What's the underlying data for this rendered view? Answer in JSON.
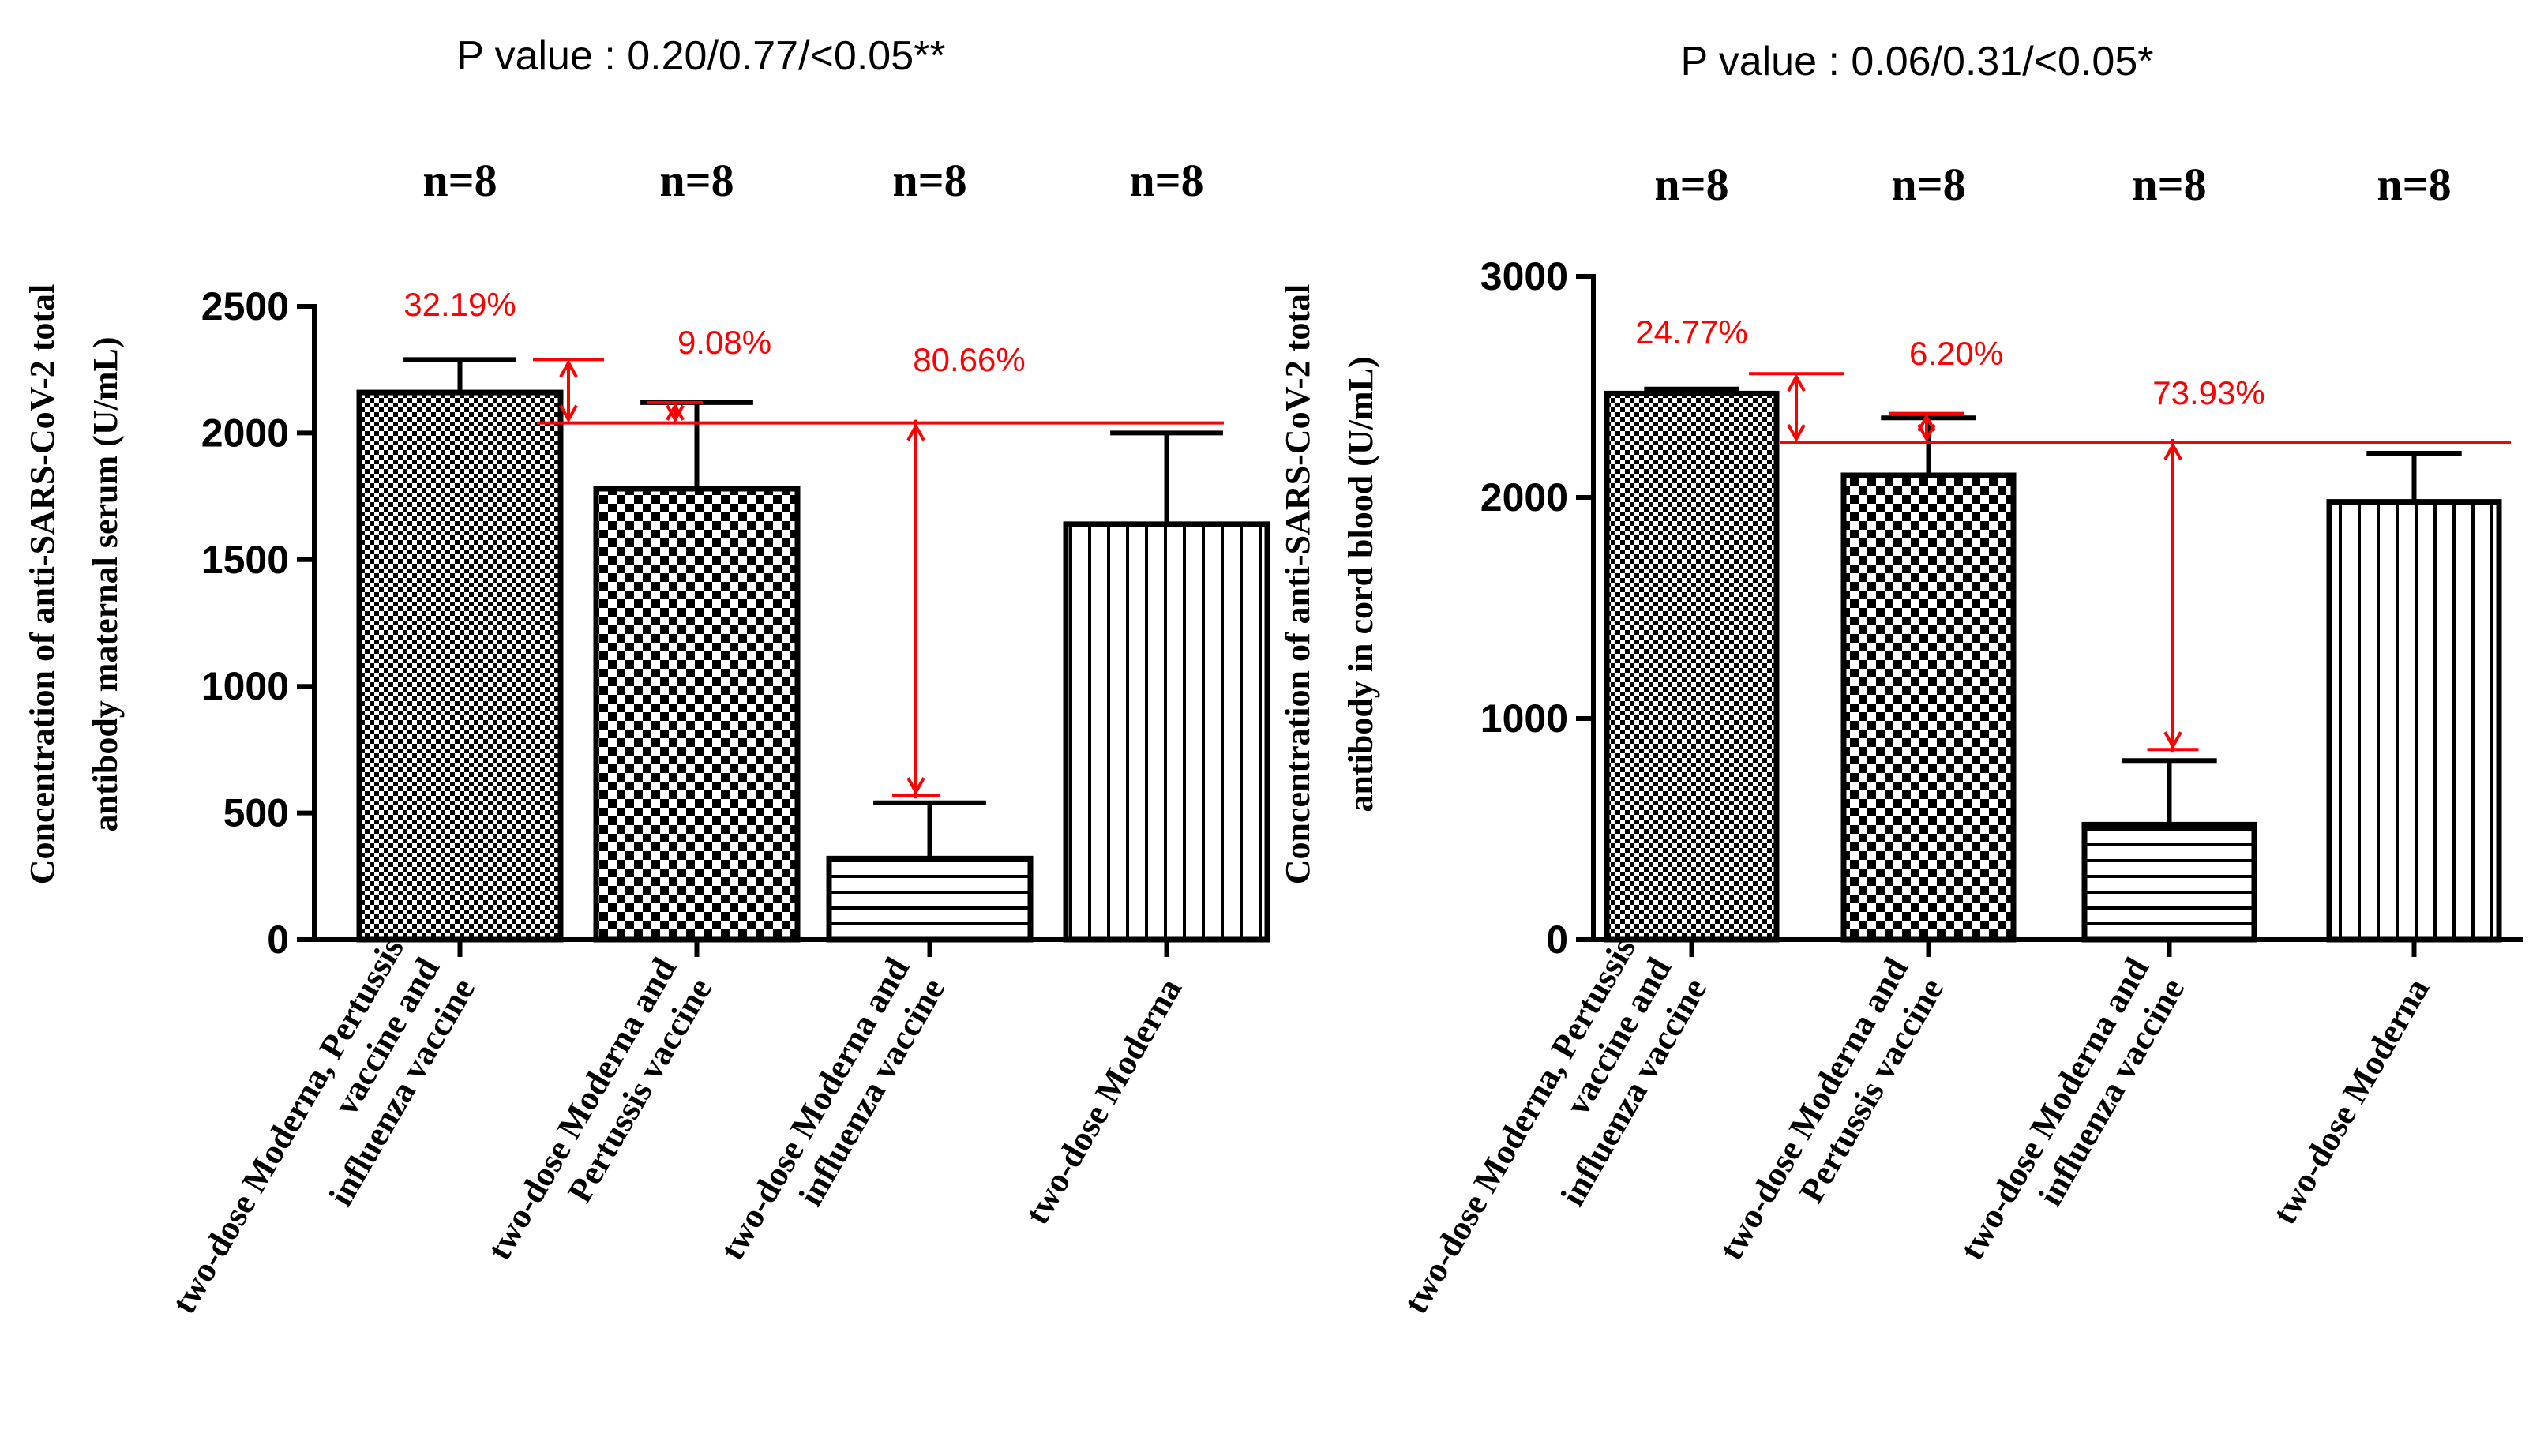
{
  "colors": {
    "annotation": "#ff0000",
    "ink": "#000000"
  },
  "chart_data": [
    {
      "type": "bar",
      "title": "P value : 0.20/0.77/<0.05**",
      "ylabel": [
        "Concentration of anti-SARS-CoV-2 total",
        "antibody maternal serum (U/mL)"
      ],
      "ylim": [
        0,
        2500
      ],
      "yticks": [
        "0",
        "500",
        "1000",
        "1500",
        "2000",
        "2500"
      ],
      "categories": [
        [
          "two-dose Moderna, Pertussis",
          "vaccine and",
          "influenza vaccine"
        ],
        [
          "two-dose Moderna and",
          "Pertussis vaccine"
        ],
        [
          "two-dose Moderna and",
          "influenza vaccine"
        ],
        [
          "two-dose Moderna"
        ]
      ],
      "patterns": [
        "fine-check",
        "check",
        "hstripe",
        "vstripe"
      ],
      "values": [
        2160,
        1780,
        320,
        1640
      ],
      "errors": [
        2290,
        2120,
        540,
        2000
      ],
      "n_labels": [
        "n=8",
        "n=8",
        "n=8",
        "n=8"
      ],
      "reference_line": 2040,
      "annotations": [
        {
          "text": "32.19%",
          "target": 2290
        },
        {
          "text": "9.08%",
          "target": 2120
        },
        {
          "text": "80.66%",
          "target": 570
        }
      ]
    },
    {
      "type": "bar",
      "title": "P value : 0.06/0.31/<0.05*",
      "ylabel": [
        "Concentration of anti-SARS-CoV-2 total",
        "antibody in cord blood (U/mL)"
      ],
      "ylim": [
        0,
        3000
      ],
      "yticks": [
        "0",
        "1000",
        "2000",
        "3000"
      ],
      "categories": [
        [
          "two-dose Moderna, Pertussis",
          "vaccine and",
          "influenza vaccine"
        ],
        [
          "two-dose Moderna and",
          "Pertussis vaccine"
        ],
        [
          "two-dose Moderna and",
          "influenza vaccine"
        ],
        [
          "two-dose Moderna"
        ]
      ],
      "patterns": [
        "fine-check",
        "check",
        "hstripe",
        "vstripe"
      ],
      "values": [
        2470,
        2100,
        520,
        1980
      ],
      "errors": [
        2490,
        2360,
        810,
        2200
      ],
      "n_labels": [
        "n=8",
        "n=8",
        "n=8",
        "n=8"
      ],
      "reference_line": 2250,
      "annotations": [
        {
          "text": "24.77%",
          "target": 2560
        },
        {
          "text": "6.20%",
          "target": 2380
        },
        {
          "text": "73.93%",
          "target": 860
        }
      ]
    }
  ]
}
